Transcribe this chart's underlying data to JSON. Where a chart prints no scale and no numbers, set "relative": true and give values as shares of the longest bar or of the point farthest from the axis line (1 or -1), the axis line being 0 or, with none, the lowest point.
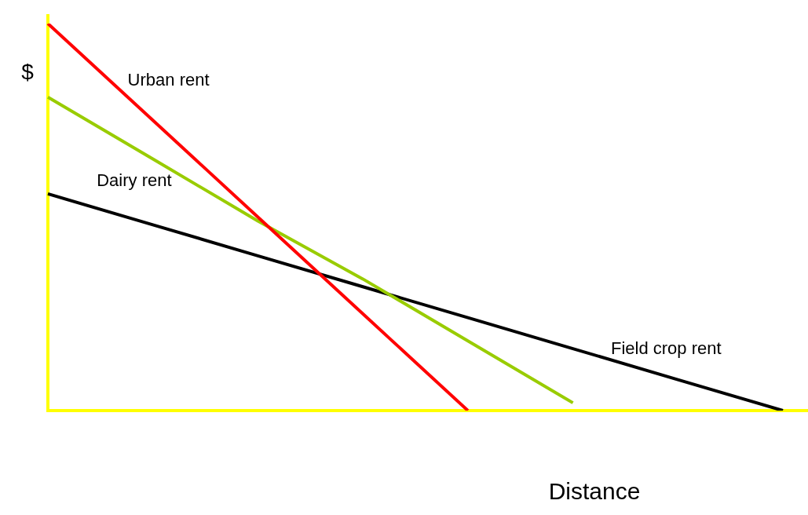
{
  "chart_data": {
    "type": "line",
    "relative": true,
    "ylabel": "$",
    "xlabel": "Distance",
    "legend": false,
    "marker": "none",
    "line_style": "solid",
    "categories": [
      null,
      null,
      null,
      null,
      null,
      null,
      null,
      null
    ],
    "series": [
      {
        "name": "Urban rent",
        "color": "#ff0000",
        "values": [
          1,
          0.75,
          0.5,
          0.25,
          0,
          null,
          null,
          null
        ]
      },
      {
        "name": "Dairy rent",
        "color": "#99cc00",
        "values": [
          0.81,
          0.65,
          0.49,
          0.34,
          0.18,
          0.02,
          null,
          null
        ]
      },
      {
        "name": "Field crop rent",
        "color": "#000000",
        "values": [
          0.56,
          0.48,
          0.4,
          0.32,
          0.24,
          0.16,
          0.08,
          0
        ]
      }
    ]
  }
}
